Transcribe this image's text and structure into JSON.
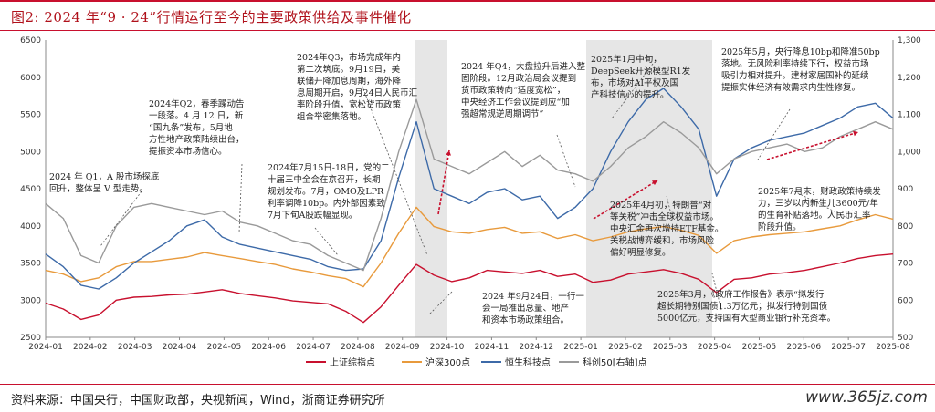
{
  "figure": {
    "title": "图2:  2024 年“9 · 24”行情运行至今的主要政策供给及事件催化",
    "source": "资料来源：中国央行，中国财政部，央视新闻，Wind，浙商证券研究所",
    "watermark": "www.365jz.com"
  },
  "chart_data": {
    "type": "line",
    "x_ticks": [
      "2024-01",
      "2024-02",
      "2024-03",
      "2024-04",
      "2024-05",
      "2024-06",
      "2024-07",
      "2024-08",
      "2024-09",
      "2024-10",
      "2024-11",
      "2024-12",
      "2025-01",
      "2025-02",
      "2025-03",
      "2025-04",
      "2025-05",
      "2025-06",
      "2025-07",
      "2025-08"
    ],
    "y_left_ticks": [
      2500,
      3000,
      3500,
      4000,
      4500,
      5000,
      5500,
      6000,
      6500
    ],
    "y_right_ticks": [
      500,
      600,
      700,
      800,
      900,
      1000,
      1100,
      1200,
      1300
    ],
    "ylim_left": [
      2500,
      6500
    ],
    "ylim_right": [
      500,
      1300
    ],
    "legend_position": "bottom",
    "series": [
      {
        "name": "上证综指点",
        "axis": "left",
        "color": "#c8102e",
        "values": [
          2960,
          2880,
          2740,
          2800,
          3000,
          3040,
          3050,
          3070,
          3080,
          3110,
          3140,
          3090,
          3060,
          3030,
          2990,
          2970,
          2950,
          2850,
          2700,
          2910,
          3200,
          3480,
          3336,
          3250,
          3300,
          3400,
          3380,
          3360,
          3400,
          3320,
          3350,
          3240,
          3270,
          3350,
          3380,
          3410,
          3360,
          3280,
          3100,
          3280,
          3300,
          3350,
          3370,
          3400,
          3450,
          3500,
          3560,
          3600,
          3620
        ]
      },
      {
        "name": "沪深300点",
        "axis": "left",
        "color": "#e89a3c",
        "values": [
          3400,
          3350,
          3250,
          3300,
          3450,
          3520,
          3520,
          3550,
          3580,
          3640,
          3600,
          3560,
          3520,
          3480,
          3420,
          3380,
          3330,
          3290,
          3180,
          3500,
          3900,
          4250,
          3990,
          3920,
          3900,
          3950,
          3980,
          3900,
          3920,
          3830,
          3880,
          3800,
          3850,
          3920,
          3960,
          3990,
          3940,
          3870,
          3630,
          3800,
          3850,
          3880,
          3900,
          3920,
          3960,
          4000,
          4080,
          4150,
          4090
        ]
      },
      {
        "name": "恒生科技点",
        "axis": "left",
        "color": "#3d6aa8",
        "values": [
          3620,
          3450,
          3200,
          3150,
          3300,
          3500,
          3650,
          3800,
          4000,
          4080,
          3850,
          3750,
          3700,
          3650,
          3600,
          3550,
          3450,
          3400,
          3420,
          3800,
          4650,
          5400,
          4500,
          4400,
          4300,
          4450,
          4500,
          4350,
          4400,
          4100,
          4250,
          4500,
          5000,
          5400,
          5700,
          5850,
          5600,
          5300,
          4400,
          4900,
          5050,
          5150,
          5200,
          5250,
          5350,
          5450,
          5600,
          5650,
          5450
        ]
      },
      {
        "name": "科创50[右轴]点",
        "axis": "right",
        "color": "#9a9a9a",
        "values": [
          860,
          820,
          720,
          700,
          800,
          850,
          860,
          850,
          840,
          830,
          840,
          810,
          800,
          780,
          760,
          750,
          720,
          700,
          680,
          820,
          1000,
          1140,
          980,
          960,
          940,
          970,
          1000,
          960,
          990,
          950,
          940,
          920,
          960,
          1010,
          1040,
          1080,
          1050,
          1010,
          940,
          980,
          1000,
          1010,
          1020,
          1000,
          1010,
          1040,
          1060,
          1080,
          1060
        ]
      }
    ],
    "annotations": [
      {
        "lines": [
          "2024 年 Q1，A 股市场探底",
          "回升，整体呈 V 型走势。"
        ]
      },
      {
        "lines": [
          "2024年Q2，春季躁动告",
          "一段落。4 月 12 日，新",
          "“国九条”发布，5月地",
          "方性地产政策陆续出台，",
          "提振资本市场信心。"
        ]
      },
      {
        "lines": [
          "2024年7月15日-18日，党的二",
          "十届三中全会在京召开，长期",
          "规划发布。7月，OMO及LPR",
          "利率调降10bp。内外部因素致",
          "7月下旬A股跌幅显现。"
        ]
      },
      {
        "lines": [
          "2024年Q3，市场完成年内",
          "第二次筑底。9月19日，美",
          "联储开降加息周期，海外降",
          "息周期开启，9月24日人民币汇",
          "率阶段升值，宽松货币政策",
          "组合举密集落地。"
        ]
      },
      {
        "lines": [
          "2024 年9月24日，一行一",
          "会一局推出总量、地产",
          "和资本市场政策组合。"
        ]
      },
      {
        "lines": [
          "2024 年Q4，大盘拉升后进入整",
          "固阶段。12月政治局会议提到",
          "货币政策转向“适度宽松”，",
          "中央经济工作会议提到应“加",
          "强超常规逆周期调节”"
        ]
      },
      {
        "lines": [
          "2025年1月中旬，",
          "DeepSeek开源模型R1发",
          "布，市场对AI平权及国",
          "产科技信心的提升。"
        ]
      },
      {
        "lines": [
          "2025年4月初，特朗普“对",
          "等关税”冲击全球权益市场。",
          "中央汇金再次增持ETF基金。",
          "关税战博弈缓和，市场风险",
          "偏好明显修复。"
        ]
      },
      {
        "lines": [
          "2025年3月，《政府工作报告》表示“拟发行",
          "超长期特别国债1.3万亿元；拟发行特别国债",
          "5000亿元，支持国有大型商业银行补充资本。"
        ]
      },
      {
        "lines": [
          "2025年5月，央行降息10bp和降准50bp",
          "落地。无风险利率持续下行，权益市场",
          "吸引力相对提升。建材家居国补的延续",
          "提振实体经济有效需求内生性修复。"
        ]
      },
      {
        "lines": [
          "2025年7月末，财政政策持续发",
          "力，三岁以内新生儿3600元/年",
          "的生育补贴落地。人民币汇率",
          "阶段升值。"
        ]
      }
    ]
  }
}
